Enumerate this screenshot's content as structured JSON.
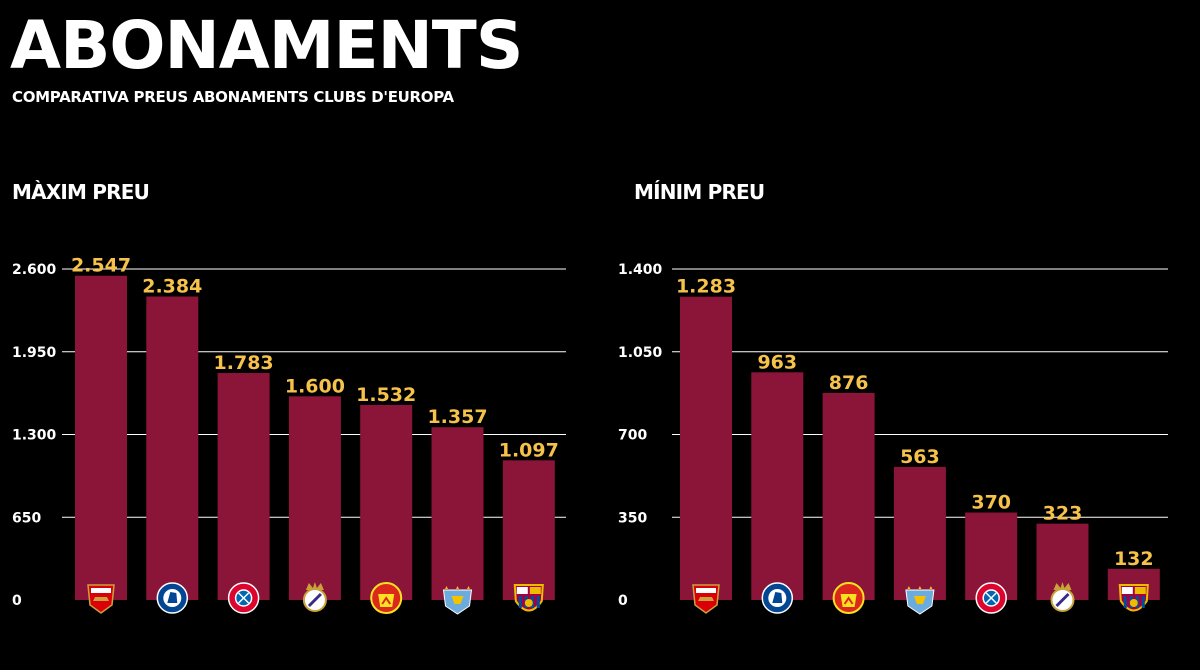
{
  "header": {
    "title": "ABONAMENTS",
    "subtitle": "COMPARATIVA PREUS ABONAMENTS CLUBS D'EUROPA"
  },
  "colors": {
    "background": "#000000",
    "bar": "#8b1538",
    "value_label": "#f6c24a",
    "grid": "#ffffff",
    "text": "#ffffff"
  },
  "chart_data": [
    {
      "type": "bar",
      "title": "MÀXIM PREU",
      "categories": [
        "Arsenal",
        "Chelsea",
        "Bayern München",
        "Real Madrid",
        "Manchester United",
        "Manchester City",
        "FC Barcelona"
      ],
      "logos": [
        "arsenal-logo",
        "chelsea-logo",
        "bayern-logo",
        "real-madrid-logo",
        "man-united-logo",
        "man-city-logo",
        "barcelona-logo"
      ],
      "values": [
        2547,
        2384,
        1783,
        1600,
        1532,
        1357,
        1097
      ],
      "value_labels": [
        "2.547",
        "2.384",
        "1.783",
        "1.600",
        "1.532",
        "1.357",
        "1.097"
      ],
      "yticks": [
        0,
        650,
        1300,
        1950,
        2600
      ],
      "ytick_labels": [
        "0",
        "650",
        "1.300",
        "1.950",
        "2.600"
      ],
      "ylim": [
        0,
        2600
      ],
      "grid": true
    },
    {
      "type": "bar",
      "title": "MÍNIM PREU",
      "categories": [
        "Arsenal",
        "Chelsea",
        "Manchester United",
        "Manchester City",
        "Bayern München",
        "Real Madrid",
        "FC Barcelona"
      ],
      "logos": [
        "arsenal-logo",
        "chelsea-logo",
        "man-united-logo",
        "man-city-logo",
        "bayern-logo",
        "real-madrid-logo",
        "barcelona-logo"
      ],
      "values": [
        1283,
        963,
        876,
        563,
        370,
        323,
        132
      ],
      "value_labels": [
        "1.283",
        "963",
        "876",
        "563",
        "370",
        "323",
        "132"
      ],
      "yticks": [
        0,
        350,
        700,
        1050,
        1400
      ],
      "ytick_labels": [
        "0",
        "350",
        "700",
        "1.050",
        "1.400"
      ],
      "ylim": [
        0,
        1400
      ],
      "grid": true
    }
  ]
}
